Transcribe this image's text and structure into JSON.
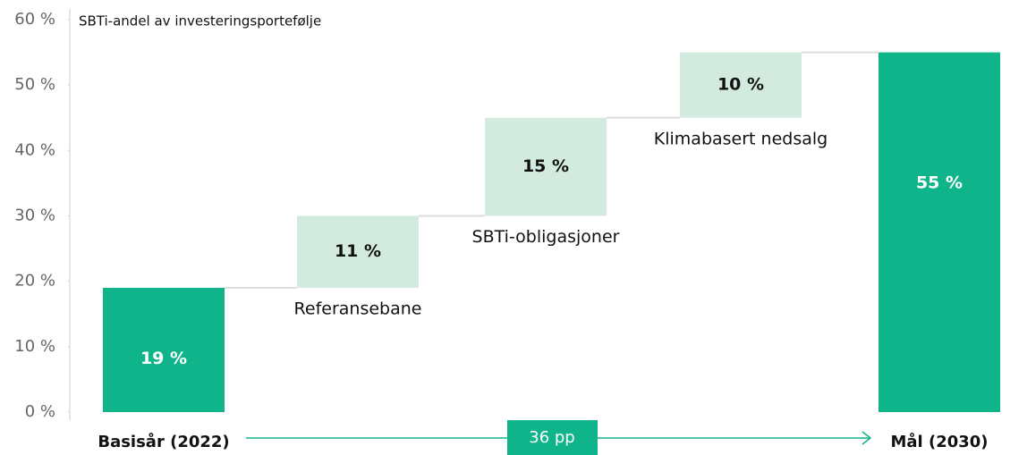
{
  "chart_data": {
    "type": "waterfall",
    "title": "SBTi-andel av investeringsportefølje",
    "categories": [
      "Basisår (2022)",
      "Referansebane",
      "SBTi-obligasjoner",
      "Klimabasert nedsalg",
      "Mål (2030)"
    ],
    "values": [
      19,
      11,
      15,
      10,
      55
    ],
    "value_labels": [
      "19 %",
      "11 %",
      "15 %",
      "10 %",
      "55 %"
    ],
    "colors": [
      "#10b48a",
      "#d3ebdf",
      "#d3ebdf",
      "#d3ebdf",
      "#10b48a"
    ],
    "ylim": [
      0,
      60
    ],
    "yticks": [
      {
        "value": 0,
        "label": "0 %"
      },
      {
        "value": 10,
        "label": "10 %"
      },
      {
        "value": 20,
        "label": "20 %"
      },
      {
        "value": 30,
        "label": "30 %"
      },
      {
        "value": 40,
        "label": "40 %"
      },
      {
        "value": 50,
        "label": "50 %"
      },
      {
        "value": 60,
        "label": "60 %"
      }
    ],
    "annotation": "36 pp",
    "grid": false
  }
}
